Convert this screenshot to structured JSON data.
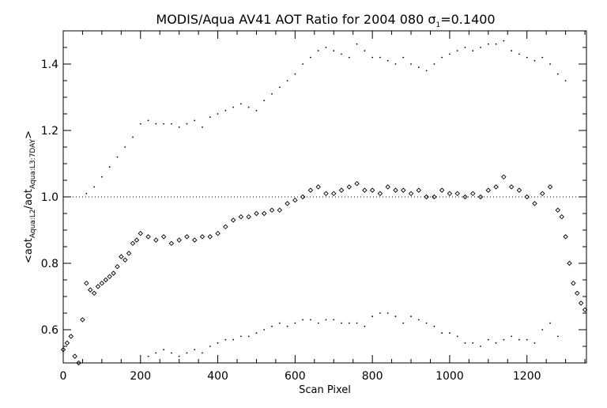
{
  "chart_data": {
    "type": "scatter",
    "title": "MODIS/Aqua AV41 AOT Ratio for 2004 080 σ",
    "title_sub": "1",
    "title_tail": "=0.1400",
    "xlabel": "Scan Pixel",
    "ylabel": {
      "prefix": "<aot",
      "sub1": "Aqua:L2",
      "mid": "/aot",
      "sub2": "Aqua:L3:7DAY",
      "suffix": ">"
    },
    "xlim": [
      0,
      1354
    ],
    "ylim": [
      0.5,
      1.5
    ],
    "x_ticks": [
      0,
      200,
      400,
      600,
      800,
      1000,
      1200
    ],
    "x_tick_labels": [
      "0",
      "200",
      "400",
      "600",
      "800",
      "1000",
      "1200"
    ],
    "y_ticks": [
      0.6,
      0.8,
      1.0,
      1.2,
      1.4
    ],
    "y_tick_labels": [
      "0.6",
      "0.8",
      "1.0",
      "1.2",
      "1.4"
    ],
    "reference_line": {
      "y": 1.0,
      "style": "dotted"
    },
    "series": [
      {
        "role": "mean_ratio",
        "marker": "diamond",
        "x": [
          0,
          10,
          20,
          30,
          40,
          50,
          60,
          70,
          80,
          90,
          100,
          110,
          120,
          130,
          140,
          150,
          160,
          170,
          180,
          190,
          200,
          220,
          240,
          260,
          280,
          300,
          320,
          340,
          360,
          380,
          400,
          420,
          440,
          460,
          480,
          500,
          520,
          540,
          560,
          580,
          600,
          620,
          640,
          660,
          680,
          700,
          720,
          740,
          760,
          780,
          800,
          820,
          840,
          860,
          880,
          900,
          920,
          940,
          960,
          980,
          1000,
          1020,
          1040,
          1060,
          1080,
          1100,
          1120,
          1140,
          1160,
          1180,
          1200,
          1220,
          1240,
          1260,
          1280,
          1290,
          1300,
          1310,
          1320,
          1330,
          1340,
          1350
        ],
        "y": [
          0.54,
          0.56,
          0.58,
          0.52,
          0.5,
          0.63,
          0.74,
          0.72,
          0.71,
          0.73,
          0.74,
          0.75,
          0.76,
          0.77,
          0.79,
          0.82,
          0.81,
          0.83,
          0.86,
          0.87,
          0.89,
          0.88,
          0.87,
          0.88,
          0.86,
          0.87,
          0.88,
          0.87,
          0.88,
          0.88,
          0.89,
          0.91,
          0.93,
          0.94,
          0.94,
          0.95,
          0.95,
          0.96,
          0.96,
          0.98,
          0.99,
          1.0,
          1.02,
          1.03,
          1.01,
          1.01,
          1.02,
          1.03,
          1.04,
          1.02,
          1.02,
          1.01,
          1.03,
          1.02,
          1.02,
          1.01,
          1.02,
          1.0,
          1.0,
          1.02,
          1.01,
          1.01,
          1.0,
          1.01,
          1.0,
          1.02,
          1.03,
          1.06,
          1.03,
          1.02,
          1.0,
          0.98,
          1.01,
          1.03,
          0.96,
          0.94,
          0.88,
          0.8,
          0.74,
          0.71,
          0.68,
          0.66
        ]
      },
      {
        "role": "upper_sigma",
        "marker": "dot",
        "x": [
          60,
          80,
          100,
          120,
          140,
          160,
          180,
          200,
          220,
          240,
          260,
          280,
          300,
          320,
          340,
          360,
          380,
          400,
          420,
          440,
          460,
          480,
          500,
          520,
          540,
          560,
          580,
          600,
          620,
          640,
          660,
          680,
          700,
          720,
          740,
          760,
          780,
          800,
          820,
          840,
          860,
          880,
          900,
          920,
          940,
          960,
          980,
          1000,
          1020,
          1040,
          1060,
          1080,
          1100,
          1120,
          1140,
          1160,
          1180,
          1200,
          1220,
          1240,
          1260,
          1280,
          1300
        ],
        "y": [
          1.01,
          1.03,
          1.06,
          1.09,
          1.12,
          1.15,
          1.18,
          1.22,
          1.23,
          1.22,
          1.22,
          1.22,
          1.21,
          1.22,
          1.23,
          1.21,
          1.24,
          1.25,
          1.26,
          1.27,
          1.28,
          1.27,
          1.26,
          1.29,
          1.31,
          1.33,
          1.35,
          1.37,
          1.4,
          1.42,
          1.44,
          1.45,
          1.44,
          1.43,
          1.42,
          1.46,
          1.44,
          1.42,
          1.42,
          1.41,
          1.4,
          1.42,
          1.4,
          1.39,
          1.38,
          1.4,
          1.42,
          1.43,
          1.44,
          1.45,
          1.44,
          1.45,
          1.46,
          1.46,
          1.47,
          1.44,
          1.43,
          1.42,
          1.41,
          1.42,
          1.4,
          1.37,
          1.35
        ]
      },
      {
        "role": "lower_sigma",
        "marker": "dot",
        "x": [
          200,
          220,
          240,
          260,
          280,
          300,
          320,
          340,
          360,
          380,
          400,
          420,
          440,
          460,
          480,
          500,
          520,
          540,
          560,
          580,
          600,
          620,
          640,
          660,
          680,
          700,
          720,
          740,
          760,
          780,
          800,
          820,
          840,
          860,
          880,
          900,
          920,
          940,
          960,
          980,
          1000,
          1020,
          1040,
          1060,
          1080,
          1100,
          1120,
          1140,
          1160,
          1180,
          1200,
          1220,
          1240,
          1260,
          1280
        ],
        "y": [
          0.5,
          0.52,
          0.53,
          0.54,
          0.53,
          0.52,
          0.53,
          0.54,
          0.53,
          0.55,
          0.56,
          0.57,
          0.57,
          0.58,
          0.58,
          0.59,
          0.6,
          0.61,
          0.62,
          0.61,
          0.62,
          0.63,
          0.63,
          0.62,
          0.63,
          0.63,
          0.62,
          0.62,
          0.62,
          0.61,
          0.64,
          0.65,
          0.65,
          0.64,
          0.62,
          0.64,
          0.63,
          0.62,
          0.61,
          0.59,
          0.59,
          0.58,
          0.56,
          0.56,
          0.55,
          0.57,
          0.56,
          0.57,
          0.58,
          0.57,
          0.57,
          0.56,
          0.6,
          0.62,
          0.58
        ]
      }
    ]
  }
}
